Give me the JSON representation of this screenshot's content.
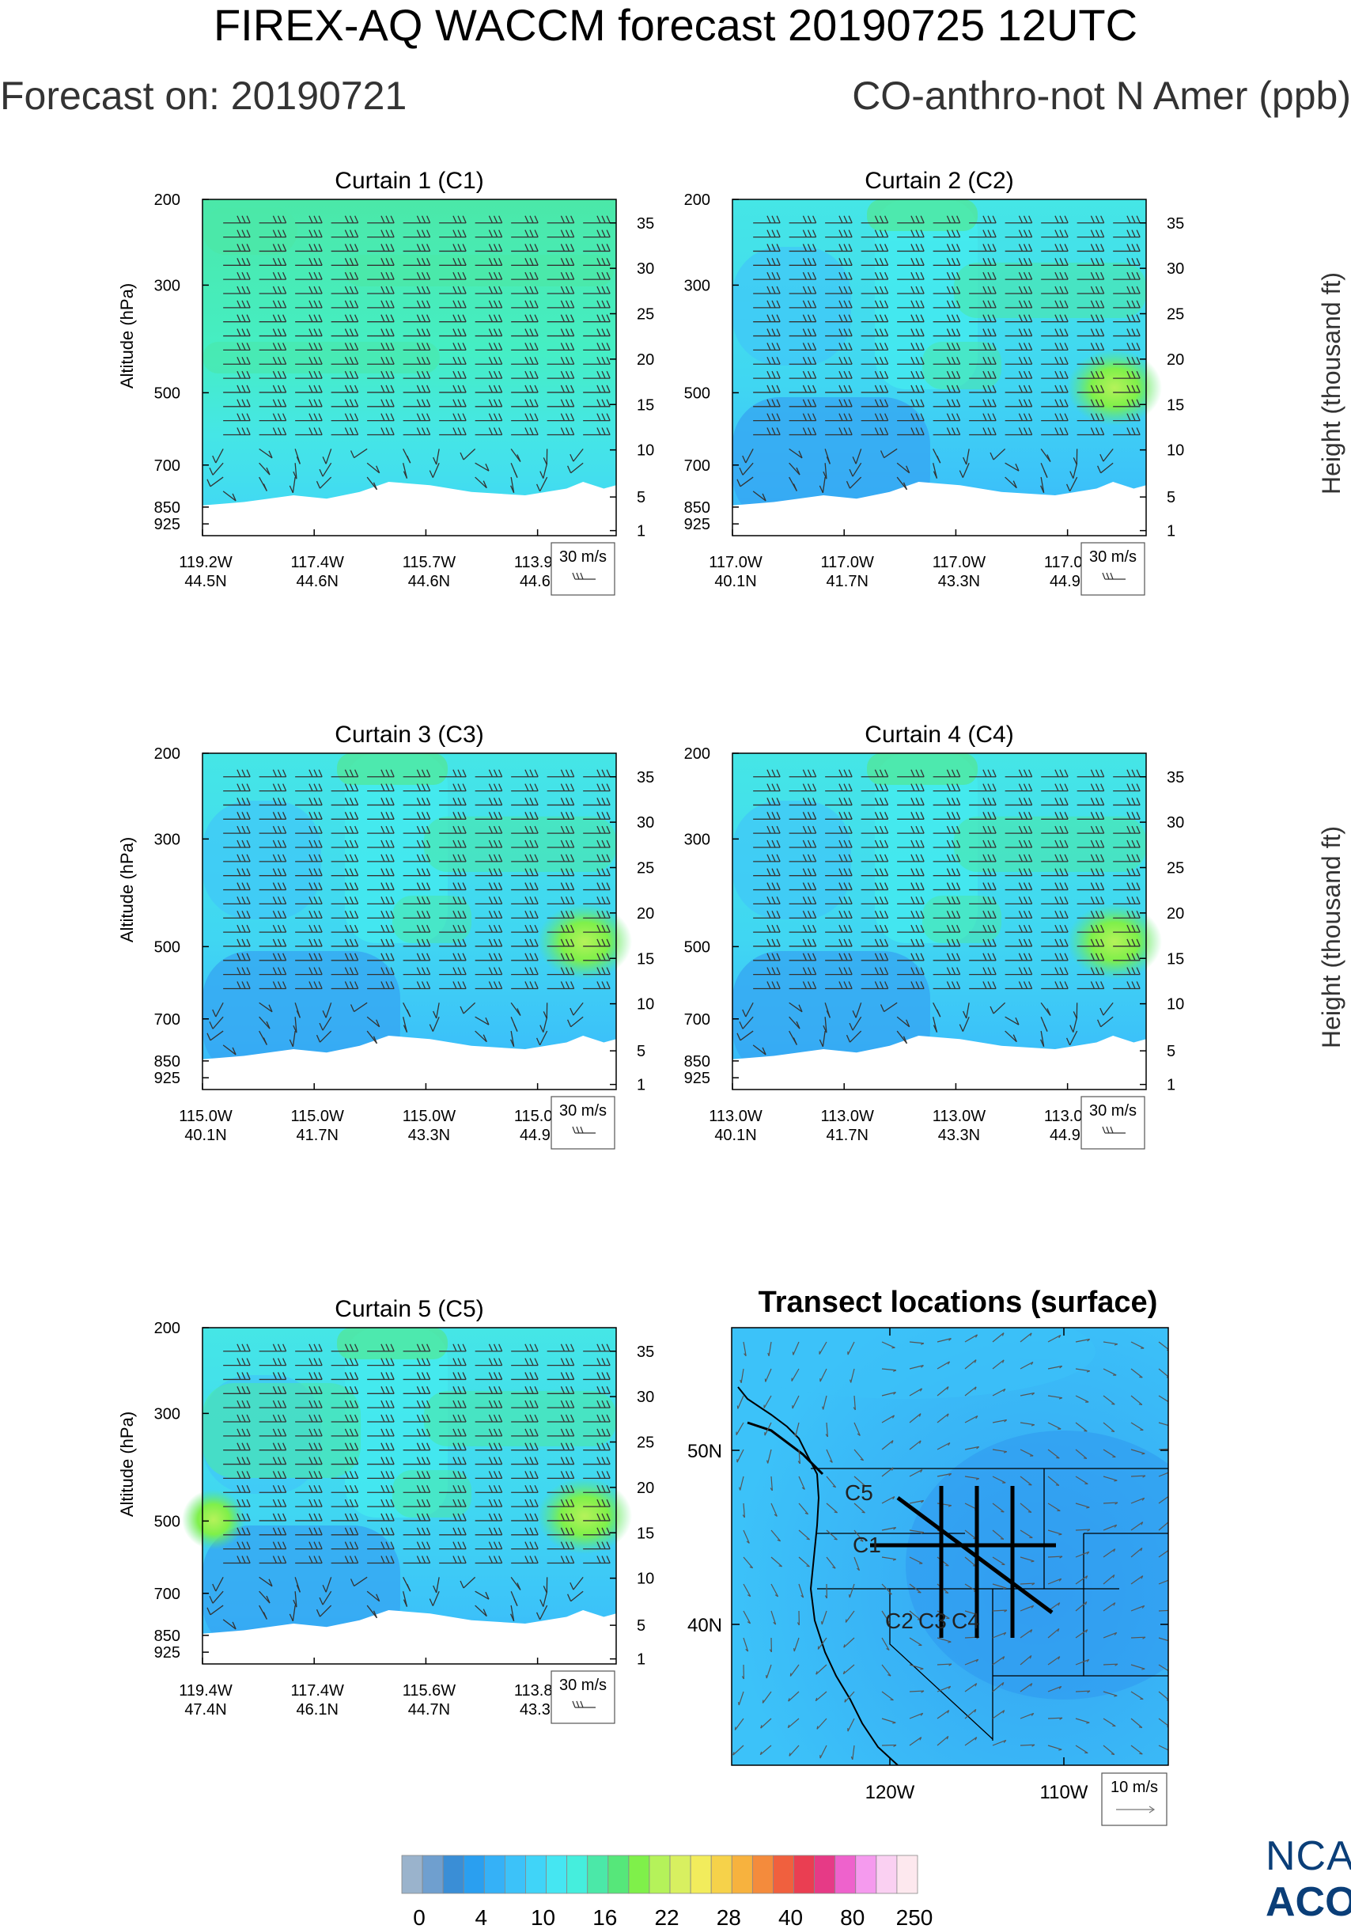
{
  "header": {
    "title": "FIREX-AQ WACCM forecast 20190725 12UTC",
    "forecast_on": "Forecast on: 20190721",
    "variable": "CO-anthro-not N Amer (ppb)"
  },
  "axis_labels": {
    "altitude": "Altitude (hPa)",
    "height": "Height (thousand ft)"
  },
  "pressure_ticks": [
    "200",
    "300",
    "500",
    "700",
    "850",
    "925"
  ],
  "height_ticks": [
    "35",
    "30",
    "25",
    "20",
    "15",
    "10",
    "5",
    "1"
  ],
  "wind_ref": "30 m/s",
  "curtains": [
    {
      "title": "Curtain 1 (C1)",
      "xticks": [
        {
          "lon": "119.2W",
          "lat": "44.5N"
        },
        {
          "lon": "117.4W",
          "lat": "44.6N"
        },
        {
          "lon": "115.7W",
          "lat": "44.6N"
        },
        {
          "lon": "113.9W",
          "lat": "44.6N"
        }
      ]
    },
    {
      "title": "Curtain 2 (C2)",
      "xticks": [
        {
          "lon": "117.0W",
          "lat": "40.1N"
        },
        {
          "lon": "117.0W",
          "lat": "41.7N"
        },
        {
          "lon": "117.0W",
          "lat": "43.3N"
        },
        {
          "lon": "117.0W",
          "lat": "44.9N"
        }
      ]
    },
    {
      "title": "Curtain 3 (C3)",
      "xticks": [
        {
          "lon": "115.0W",
          "lat": "40.1N"
        },
        {
          "lon": "115.0W",
          "lat": "41.7N"
        },
        {
          "lon": "115.0W",
          "lat": "43.3N"
        },
        {
          "lon": "115.0W",
          "lat": "44.9N"
        }
      ]
    },
    {
      "title": "Curtain 4 (C4)",
      "xticks": [
        {
          "lon": "113.0W",
          "lat": "40.1N"
        },
        {
          "lon": "113.0W",
          "lat": "41.7N"
        },
        {
          "lon": "113.0W",
          "lat": "43.3N"
        },
        {
          "lon": "113.0W",
          "lat": "44.9N"
        }
      ]
    },
    {
      "title": "Curtain 5 (C5)",
      "xticks": [
        {
          "lon": "119.4W",
          "lat": "47.4N"
        },
        {
          "lon": "117.4W",
          "lat": "46.1N"
        },
        {
          "lon": "115.6W",
          "lat": "44.7N"
        },
        {
          "lon": "113.8W",
          "lat": "43.3N"
        }
      ]
    }
  ],
  "map": {
    "title": "Transect locations (surface)",
    "lat_ticks": [
      "50N",
      "40N"
    ],
    "lon_ticks": [
      "120W",
      "110W"
    ],
    "wind_ref": "10 m/s",
    "transect_labels": [
      "C5",
      "C1",
      "C2",
      "C3",
      "C4"
    ]
  },
  "colorbar": {
    "labels": [
      "0",
      "4",
      "10",
      "16",
      "22",
      "28",
      "40",
      "80",
      "250"
    ],
    "colors": [
      "#9ab3cc",
      "#6f9fcf",
      "#3a8ed6",
      "#2a9ff0",
      "#35b1f7",
      "#3cc2f9",
      "#40d4f8",
      "#45e6f2",
      "#45eedd",
      "#4be8a8",
      "#56e77a",
      "#7ff04a",
      "#b5f25a",
      "#d8f060",
      "#f2ec5c",
      "#f6d24a",
      "#f7b23e",
      "#f48b3c",
      "#f0603e",
      "#ea3e52",
      "#e63a86",
      "#ee62cc",
      "#f59aee",
      "#fad0f2",
      "#fde8ee"
    ]
  },
  "logo": {
    "line1": "NCAR",
    "line2": "ACOM"
  },
  "chart_data": {
    "type": "heatmap",
    "title": "FIREX-AQ WACCM forecast 20190725 12UTC",
    "variable": "CO-anthro-not N Amer (ppb)",
    "ylabel_left": "Altitude (hPa)",
    "ylabel_right": "Height (thousand ft)",
    "pressure_levels_hPa": [
      200,
      300,
      500,
      700,
      850,
      925
    ],
    "height_levels_kft": [
      35,
      30,
      25,
      20,
      15,
      10,
      5,
      1
    ],
    "color_levels_ppb": [
      0,
      4,
      10,
      16,
      22,
      28,
      40,
      80,
      250
    ],
    "panels": [
      {
        "name": "Curtain 1 (C1)",
        "values_ppb_approx": "14-18, higher (16-18) near 200-450 hPa"
      },
      {
        "name": "Curtain 2 (C2)",
        "values_ppb_approx": "10-17, max ~20 near 500 hPa at 44.9N"
      },
      {
        "name": "Curtain 3 (C3)",
        "values_ppb_approx": "10-17, max ~20 near 480 hPa at 44.9N"
      },
      {
        "name": "Curtain 4 (C4)",
        "values_ppb_approx": "10-17, max ~20 near 500 hPa at 44.9N"
      },
      {
        "name": "Curtain 5 (C5)",
        "values_ppb_approx": "11-17, max ~19 near 500 hPa at 47.4N"
      }
    ]
  }
}
